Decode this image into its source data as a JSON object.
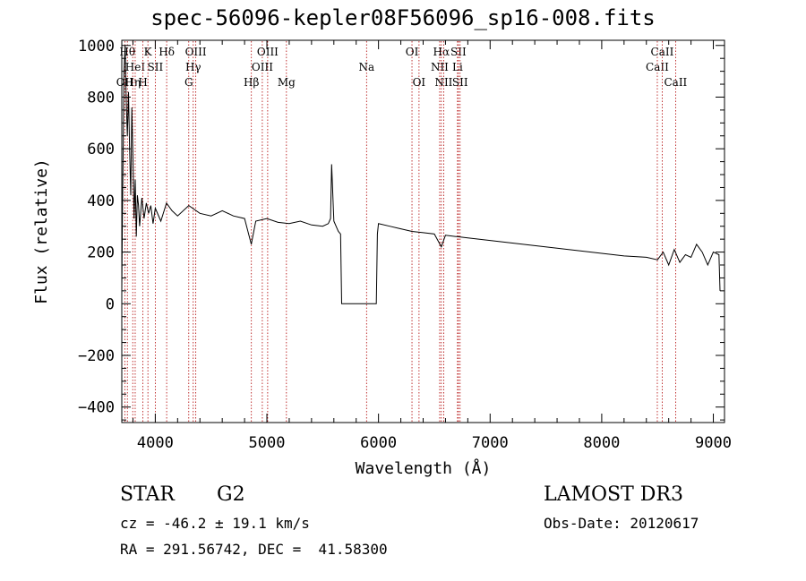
{
  "chart_data": {
    "type": "line",
    "title": "spec-56096-kepler08F56096_sp16-008.fits",
    "xlabel": "Wavelength (Å)",
    "ylabel": "Flux (relative)",
    "xlim": [
      3700,
      9100
    ],
    "ylim": [
      -460,
      1020
    ],
    "xticks": [
      4000,
      5000,
      6000,
      7000,
      8000,
      9000
    ],
    "yticks": [
      -400,
      -200,
      0,
      200,
      400,
      600,
      800,
      1000
    ],
    "grid": false,
    "series": [
      {
        "name": "spectrum",
        "x": [
          3700,
          3705,
          3720,
          3730,
          3740,
          3750,
          3760,
          3770,
          3780,
          3790,
          3800,
          3810,
          3820,
          3830,
          3840,
          3850,
          3860,
          3880,
          3900,
          3920,
          3940,
          3960,
          3980,
          4000,
          4050,
          4100,
          4150,
          4200,
          4300,
          4400,
          4500,
          4600,
          4700,
          4800,
          4860,
          4900,
          5000,
          5100,
          5200,
          5300,
          5400,
          5500,
          5550,
          5570,
          5580,
          5600,
          5640,
          5660,
          5670,
          5700,
          5800,
          5900,
          5980,
          5990,
          6000,
          6100,
          6200,
          6300,
          6400,
          6500,
          6563,
          6600,
          6700,
          6800,
          7000,
          7200,
          7400,
          7600,
          7800,
          8000,
          8200,
          8400,
          8500,
          8550,
          8600,
          8650,
          8700,
          8750,
          8800,
          8850,
          8900,
          8950,
          9000,
          9050,
          9060
        ],
        "y": [
          50,
          300,
          900,
          1000,
          780,
          650,
          820,
          600,
          420,
          760,
          560,
          330,
          480,
          260,
          420,
          380,
          300,
          410,
          330,
          390,
          350,
          380,
          310,
          370,
          320,
          390,
          360,
          340,
          380,
          350,
          340,
          360,
          340,
          330,
          230,
          320,
          330,
          315,
          310,
          320,
          305,
          300,
          310,
          330,
          540,
          320,
          280,
          270,
          0,
          0,
          0,
          0,
          0,
          270,
          310,
          300,
          290,
          280,
          275,
          270,
          220,
          265,
          260,
          255,
          245,
          235,
          225,
          215,
          205,
          195,
          185,
          180,
          170,
          200,
          150,
          210,
          160,
          190,
          180,
          230,
          200,
          150,
          200,
          190,
          50
        ]
      }
    ],
    "line_markers": [
      {
        "wavelength": 3727,
        "label": "OII",
        "row": 3
      },
      {
        "wavelength": 3750,
        "label": "Hθ",
        "row": 1
      },
      {
        "wavelength": 3798,
        "label": "Hη",
        "row": 3
      },
      {
        "wavelength": 3820,
        "label": "HeI",
        "row": 2
      },
      {
        "wavelength": 3889,
        "label": "H",
        "row": 3
      },
      {
        "wavelength": 3934,
        "label": "K",
        "row": 1
      },
      {
        "wavelength": 4000,
        "label": "SII",
        "row": 2
      },
      {
        "wavelength": 4102,
        "label": "Hδ",
        "row": 1
      },
      {
        "wavelength": 4300,
        "label": "G",
        "row": 3
      },
      {
        "wavelength": 4340,
        "label": "Hγ",
        "row": 2
      },
      {
        "wavelength": 4363,
        "label": "OIII",
        "row": 1
      },
      {
        "wavelength": 4861,
        "label": "Hβ",
        "row": 3
      },
      {
        "wavelength": 4959,
        "label": "OIII",
        "row": 2
      },
      {
        "wavelength": 5007,
        "label": "OIII",
        "row": 1
      },
      {
        "wavelength": 5175,
        "label": "Mg",
        "row": 3
      },
      {
        "wavelength": 5893,
        "label": "Na",
        "row": 2
      },
      {
        "wavelength": 6300,
        "label": "OI",
        "row": 1
      },
      {
        "wavelength": 6363,
        "label": "OI",
        "row": 3
      },
      {
        "wavelength": 6548,
        "label": "NII",
        "row": 2
      },
      {
        "wavelength": 6563,
        "label": "Hα",
        "row": 1
      },
      {
        "wavelength": 6584,
        "label": "NII",
        "row": 3
      },
      {
        "wavelength": 6708,
        "label": "Li",
        "row": 2
      },
      {
        "wavelength": 6716,
        "label": "SII",
        "row": 1
      },
      {
        "wavelength": 6731,
        "label": "SII",
        "row": 3
      },
      {
        "wavelength": 8498,
        "label": "CaII",
        "row": 2
      },
      {
        "wavelength": 8542,
        "label": "CaII",
        "row": 1
      },
      {
        "wavelength": 8662,
        "label": "CaII",
        "row": 3
      }
    ],
    "colors": {
      "line": "#000000",
      "markers": "#b00000"
    }
  },
  "info": {
    "class": "STAR",
    "subclass": "G2",
    "survey": "LAMOST DR3",
    "redshift": "cz = -46.2 ± 19.1 km/s",
    "obs_date": "Obs-Date: 20120617",
    "coords": "RA = 291.56742, DEC =  41.58300"
  }
}
